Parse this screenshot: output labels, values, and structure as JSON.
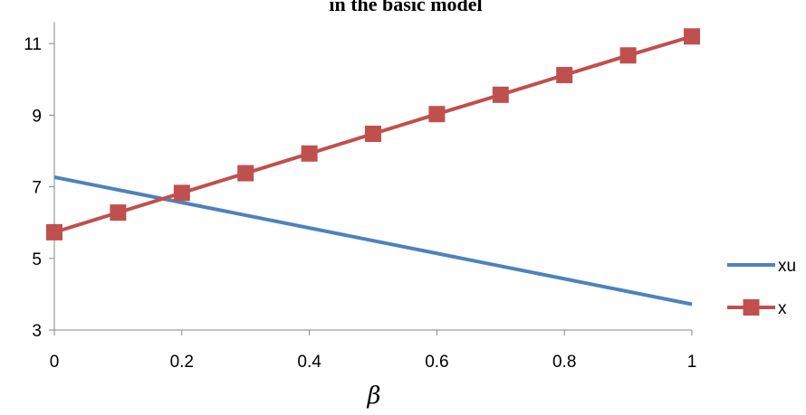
{
  "chart_data": {
    "type": "line",
    "title": "in the basic model",
    "xlabel": "β",
    "ylabel": "",
    "xlim": [
      0,
      1
    ],
    "ylim": [
      3,
      11.6
    ],
    "x_ticks": [
      "0",
      "0.2",
      "0.4",
      "0.6",
      "0.8",
      "1"
    ],
    "y_ticks": [
      "3",
      "5",
      "7",
      "9",
      "11"
    ],
    "legend_position": "right",
    "series": [
      {
        "name": "xu",
        "color": "#4f81bd",
        "marker": "none",
        "x": [
          0,
          1
        ],
        "y": [
          7.27,
          3.72
        ]
      },
      {
        "name": "x",
        "color": "#c0504d",
        "marker": "square",
        "x": [
          0,
          0.1,
          0.2,
          0.3,
          0.4,
          0.5,
          0.6,
          0.7,
          0.8,
          0.9,
          1.0
        ],
        "y": [
          5.73,
          6.28,
          6.83,
          7.38,
          7.93,
          8.48,
          9.03,
          9.57,
          10.12,
          10.67,
          11.2
        ]
      }
    ]
  }
}
